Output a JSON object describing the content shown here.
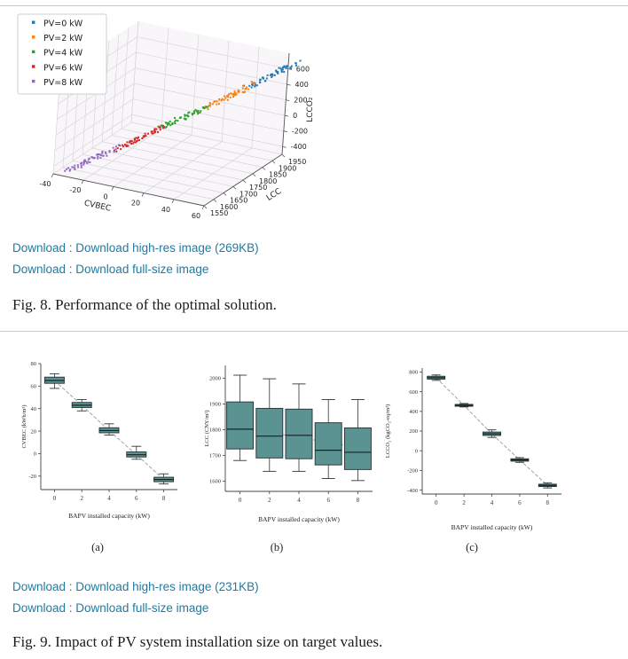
{
  "colors": {
    "link": "#1d7ba3",
    "box_fill": "#5b9292",
    "box_edge": "#24302f",
    "trend_line": "#9a9a9a",
    "grid": "#d9d5db",
    "pane": "#f8f6f9"
  },
  "figure8": {
    "downloads": [
      {
        "label": "Download : Download high-res image (269KB)"
      },
      {
        "label": "Download : Download full-size image"
      }
    ],
    "caption": "Fig. 8. Performance of the optimal solution."
  },
  "figure9": {
    "downloads": [
      {
        "label": "Download : Download high-res image (231KB)"
      },
      {
        "label": "Download : Download full-size image"
      }
    ],
    "caption": "Fig. 9. Impact of PV system installation size on target values.",
    "sublabels": [
      "(a)",
      "(b)",
      "(c)"
    ]
  },
  "chart_data": [
    {
      "type": "scatter",
      "projection": "3d",
      "xlabel": "CVBEC",
      "ylabel": "LCC",
      "zlabel": "LCCO₂",
      "xticks": [
        -40,
        -20,
        0,
        20,
        40,
        60
      ],
      "yticks": [
        1550,
        1600,
        1650,
        1700,
        1750,
        1800,
        1850,
        1900,
        1950
      ],
      "zticks": [
        -400,
        -200,
        0,
        200,
        400,
        600
      ],
      "xlim": [
        -40,
        60
      ],
      "ylim": [
        1550,
        1950
      ],
      "zlim": [
        -500,
        800
      ],
      "legend_position": "upper left",
      "series": [
        {
          "name": "PV=0 kW",
          "color": "#1f77b4",
          "center": [
            65,
            1830,
            745
          ],
          "count": 55
        },
        {
          "name": "PV=2 kW",
          "color": "#ff7f0e",
          "center": [
            43,
            1780,
            460
          ],
          "count": 55
        },
        {
          "name": "PV=4 kW",
          "color": "#2ca02c",
          "center": [
            20,
            1730,
            170
          ],
          "count": 55
        },
        {
          "name": "PV=6 kW",
          "color": "#d62728",
          "center": [
            -1,
            1680,
            -95
          ],
          "count": 55
        },
        {
          "name": "PV=8 kW",
          "color": "#9467bd",
          "center": [
            -24,
            1620,
            -360
          ],
          "count": 55
        }
      ]
    },
    {
      "type": "box",
      "label": "(a)",
      "xlabel": "BAPV  installed capacity (kW)",
      "ylabel": "CVBEC (kWh/m²)",
      "categories": [
        0,
        2,
        4,
        6,
        8
      ],
      "ylim": [
        -32,
        80
      ],
      "yticks": [
        80,
        60,
        40,
        20,
        0,
        -20
      ],
      "boxes": [
        {
          "low": 58,
          "q1": 62.5,
          "median": 65,
          "q3": 68,
          "high": 71
        },
        {
          "low": 38,
          "q1": 41,
          "median": 43,
          "q3": 45.5,
          "high": 48
        },
        {
          "low": 16.5,
          "q1": 18.5,
          "median": 20.5,
          "q3": 23,
          "high": 26.5
        },
        {
          "low": -5,
          "q1": -3,
          "median": -1,
          "q3": 1.5,
          "high": 6.5
        },
        {
          "low": -27,
          "q1": -25,
          "median": -23,
          "q3": -21,
          "high": -18
        }
      ],
      "trend": [
        65,
        43,
        20.5,
        -1,
        -23
      ]
    },
    {
      "type": "box",
      "label": "(b)",
      "xlabel": "BAPV installed capacity (kW)",
      "ylabel": "LCC (CNY/m²)",
      "categories": [
        0,
        2,
        4,
        6,
        8
      ],
      "ylim": [
        1560,
        2050
      ],
      "yticks": [
        2000,
        1900,
        1800,
        1700,
        1600
      ],
      "boxes": [
        {
          "low": 1680,
          "q1": 1725,
          "median": 1802,
          "q3": 1908,
          "high": 2012
        },
        {
          "low": 1638,
          "q1": 1690,
          "median": 1775,
          "q3": 1883,
          "high": 1998
        },
        {
          "low": 1638,
          "q1": 1687,
          "median": 1778,
          "q3": 1880,
          "high": 1978
        },
        {
          "low": 1610,
          "q1": 1663,
          "median": 1720,
          "q3": 1827,
          "high": 1917
        },
        {
          "low": 1602,
          "q1": 1645,
          "median": 1712,
          "q3": 1807,
          "high": 1917
        }
      ],
      "trend": [
        1805,
        1783,
        1776,
        1745,
        1737
      ]
    },
    {
      "type": "box",
      "label": "(c)",
      "xlabel": "BAPV installed capacity (kW)",
      "ylabel": "LCCO₂ (kgCO₂-eq/m²)",
      "categories": [
        0,
        2,
        4,
        6,
        8
      ],
      "ylim": [
        -440,
        840
      ],
      "yticks": [
        800,
        600,
        400,
        200,
        0,
        -200,
        -400
      ],
      "boxes": [
        {
          "low": 715,
          "q1": 728,
          "median": 742,
          "q3": 757,
          "high": 770
        },
        {
          "low": 445,
          "q1": 452,
          "median": 461,
          "q3": 471,
          "high": 480
        },
        {
          "low": 135,
          "q1": 155,
          "median": 172,
          "q3": 190,
          "high": 212
        },
        {
          "low": -118,
          "q1": -106,
          "median": -94,
          "q3": -82,
          "high": -70
        },
        {
          "low": -378,
          "q1": -364,
          "median": -352,
          "q3": -340,
          "high": -326
        }
      ],
      "trend": [
        742,
        461,
        172,
        -94,
        -352
      ]
    }
  ]
}
